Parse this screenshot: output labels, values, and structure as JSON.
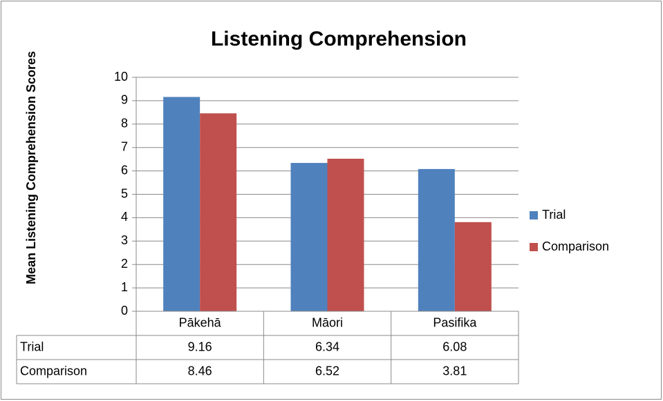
{
  "chart_data": {
    "type": "bar",
    "title": "Listening Comprehension",
    "y_label": "Mean Listening Comprehension Scores",
    "categories": [
      "Pākehā",
      "Māori",
      "Pasifika"
    ],
    "series": [
      {
        "name": "Trial",
        "color": "#4f81bd",
        "values": [
          9.16,
          6.34,
          6.08
        ]
      },
      {
        "name": "Comparison",
        "color": "#c0504d",
        "values": [
          8.46,
          6.52,
          3.81
        ]
      }
    ],
    "ylim": [
      0,
      10
    ],
    "yticks": [
      0,
      1,
      2,
      3,
      4,
      5,
      6,
      7,
      8,
      9,
      10
    ],
    "grid": true,
    "legend": "right",
    "data_table": true
  }
}
